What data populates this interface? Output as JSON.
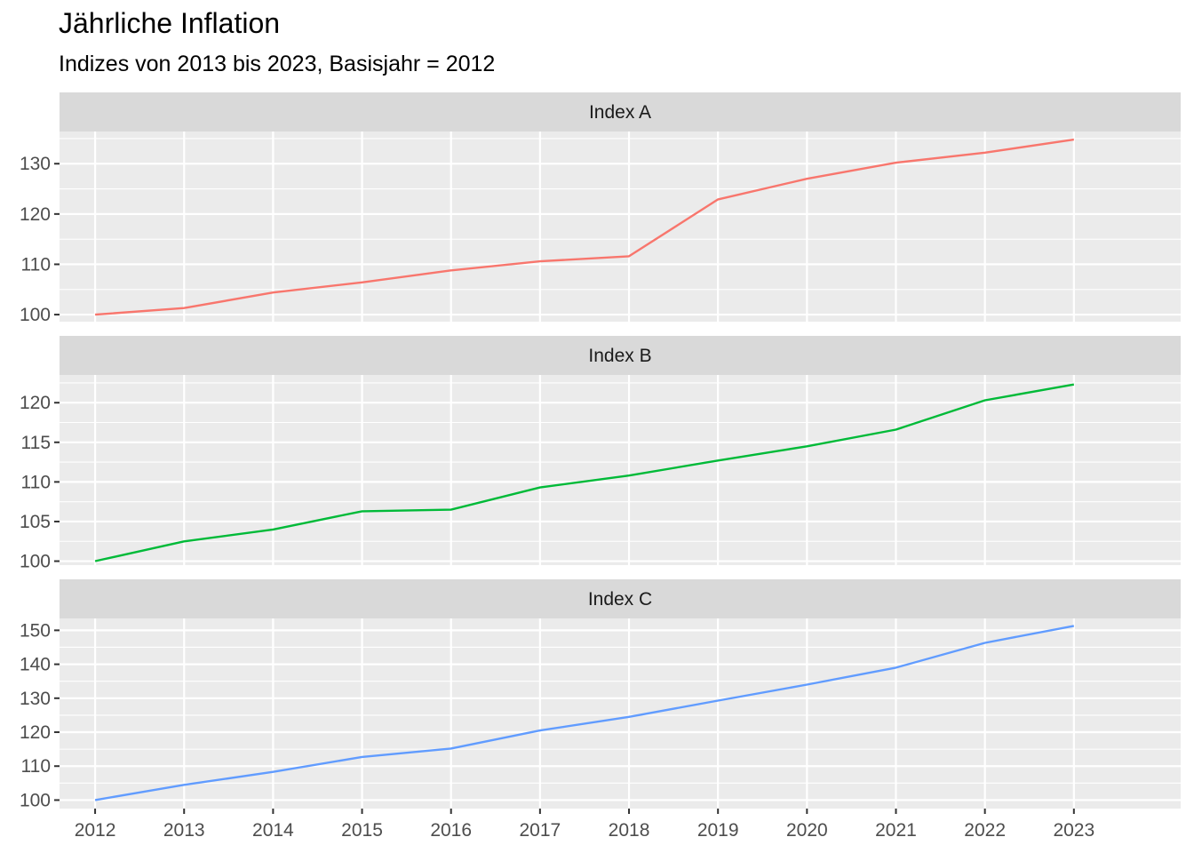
{
  "title": "Jährliche Inflation",
  "subtitle": "Indizes von 2013 bis 2023, Basisjahr = 2012",
  "chart_data": {
    "type": "line",
    "facets": "vertical",
    "x": [
      2012,
      2013,
      2014,
      2015,
      2016,
      2017,
      2018,
      2019,
      2020,
      2021,
      2022,
      2023
    ],
    "x_ticks": [
      "2012",
      "2013",
      "2014",
      "2015",
      "2016",
      "2017",
      "2018",
      "2019",
      "2020",
      "2021",
      "2022",
      "2023"
    ],
    "xlim": [
      2011.6,
      2024.2
    ],
    "grid": true,
    "legend": "none",
    "panels": [
      {
        "name": "Index A",
        "color": "#F8766D",
        "ylim": [
          98.6,
          136.4
        ],
        "y_ticks": [
          100,
          110,
          120,
          130
        ],
        "y_minor": [
          105,
          115,
          125,
          135
        ],
        "values": [
          100,
          101.3,
          104.4,
          106.4,
          108.8,
          110.6,
          111.6,
          122.9,
          127.0,
          130.2,
          132.2,
          134.8
        ]
      },
      {
        "name": "Index B",
        "color": "#00BA38",
        "ylim": [
          99.5,
          123.5
        ],
        "y_ticks": [
          100,
          105,
          110,
          115,
          120
        ],
        "y_minor": [
          102.5,
          107.5,
          112.5,
          117.5,
          122.5
        ],
        "values": [
          100,
          102.5,
          104.0,
          106.3,
          106.5,
          109.3,
          110.8,
          112.7,
          114.5,
          116.6,
          120.3,
          122.3
        ]
      },
      {
        "name": "Index C",
        "color": "#619CFF",
        "ylim": [
          97.5,
          153.5
        ],
        "y_ticks": [
          100,
          110,
          120,
          130,
          140,
          150
        ],
        "y_minor": [
          105,
          115,
          125,
          135,
          145
        ],
        "values": [
          100,
          104.5,
          108.3,
          112.7,
          115.2,
          120.5,
          124.5,
          129.3,
          134.0,
          139.0,
          146.3,
          151.3
        ]
      }
    ]
  }
}
